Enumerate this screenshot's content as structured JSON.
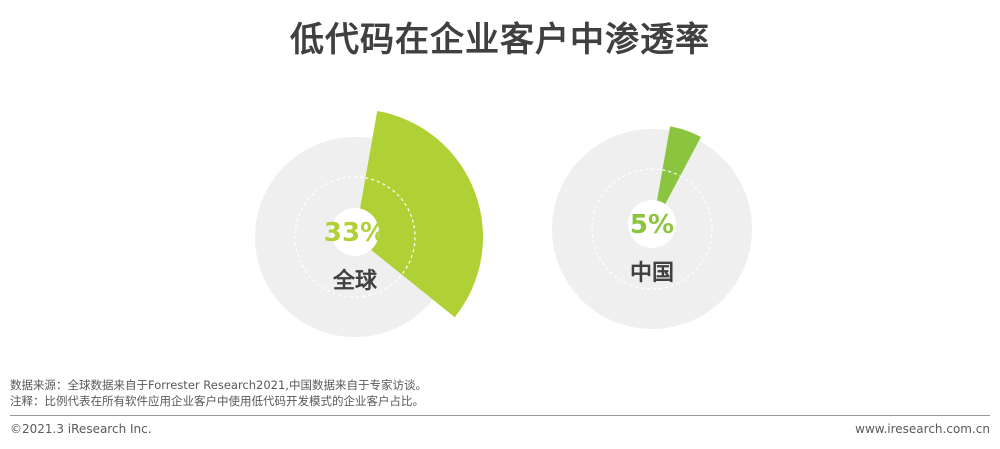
{
  "title": "低代码在企业客户中渗透率",
  "chart_data": [
    {
      "type": "pie",
      "category": "全球",
      "value": 33,
      "value_label": "33%",
      "color": "#b0d136",
      "track_color": "#efefef"
    },
    {
      "type": "pie",
      "category": "中国",
      "value": 5,
      "value_label": "5%",
      "color": "#8bc53f",
      "track_color": "#efefef"
    }
  ],
  "source_note": "数据来源：全球数据来自于Forrester Research2021,中国数据来自于专家访谈。",
  "footnote": "注释：比例代表在所有软件应用企业客户中使用低代码开发模式的企业客户占比。",
  "copyright": "©2021.3 iResearch Inc.",
  "website": "www.iresearch.com.cn"
}
